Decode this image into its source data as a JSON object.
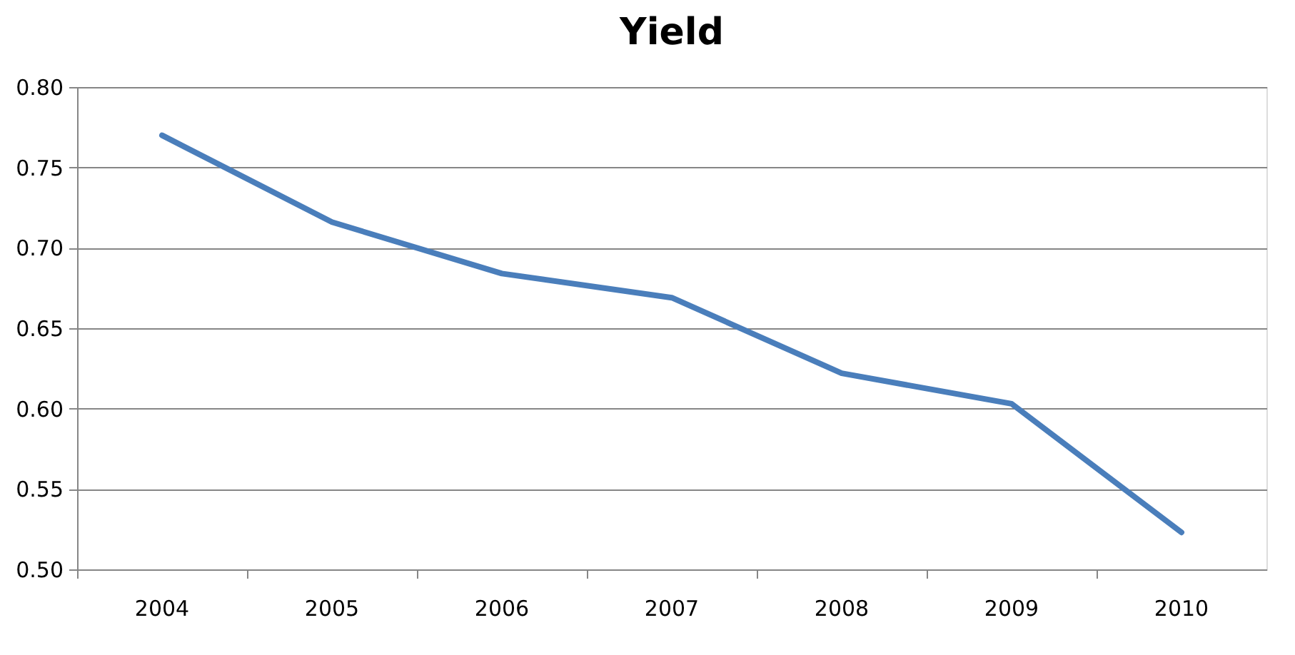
{
  "chart_data": {
    "type": "line",
    "title": "Yield",
    "categories": [
      "2004",
      "2005",
      "2006",
      "2007",
      "2008",
      "2009",
      "2010"
    ],
    "series": [
      {
        "color": "#4a7ebb",
        "values": [
          0.77,
          0.716,
          0.684,
          0.669,
          0.622,
          0.603,
          0.523
        ]
      }
    ],
    "ylim": [
      0.5,
      0.8
    ],
    "yticks": [
      {
        "value": 0.5,
        "label": "0.50"
      },
      {
        "value": 0.55,
        "label": "0.55"
      },
      {
        "value": 0.6,
        "label": "0.60"
      },
      {
        "value": 0.65,
        "label": "0.65"
      },
      {
        "value": 0.7,
        "label": "0.70"
      },
      {
        "value": 0.75,
        "label": "0.75"
      },
      {
        "value": 0.8,
        "label": "0.80"
      }
    ],
    "grid": "y",
    "marker": "none",
    "line_style": "solid"
  }
}
